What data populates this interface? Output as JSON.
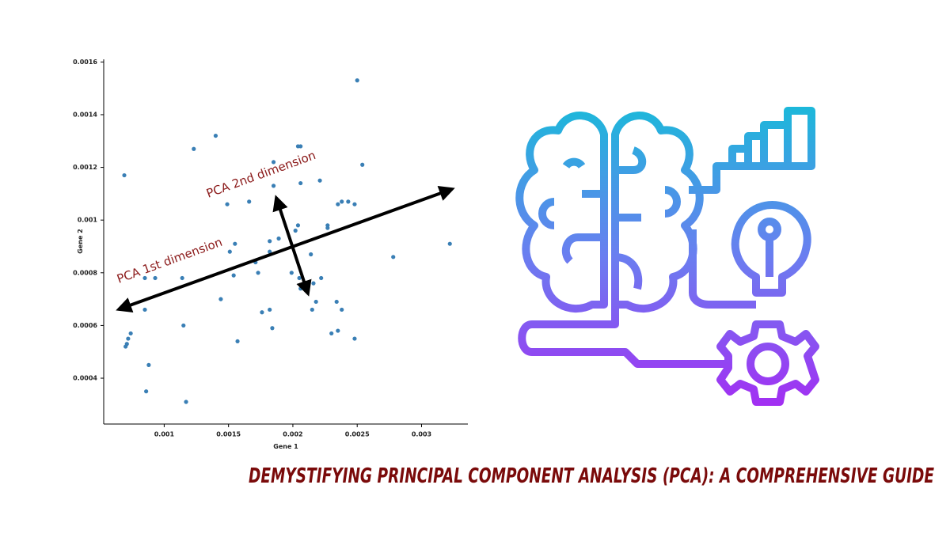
{
  "chart_data": {
    "type": "scatter",
    "title": "DEMYSTIFYING PRINCIPAL COMPONENT ANALYSIS (PCA): A COMPREHENSIVE GUIDE",
    "xlabel": "Gene 1",
    "ylabel": "Gene 2",
    "annotations": [
      "PCA 1st dimension",
      "PCA 2nd dimension"
    ],
    "color": "#3a7fb5",
    "xlim": [
      0.00053,
      0.00336
    ],
    "ylim": [
      0.000226,
      0.00161
    ],
    "xticks": [
      0.001,
      0.0015,
      0.002,
      0.0025,
      0.003
    ],
    "yticks": [
      0.0004,
      0.0006,
      0.0008,
      0.001,
      0.0012,
      0.0014,
      0.0016
    ],
    "x": [
      0.0025,
      0.00069,
      0.00123,
      0.0014,
      0.00185,
      0.00206,
      0.00204,
      0.00254,
      0.00149,
      0.00166,
      0.00185,
      0.00206,
      0.00221,
      0.00238,
      0.00243,
      0.00248,
      0.00235,
      0.00227,
      0.00227,
      0.00204,
      0.00202,
      0.00155,
      0.00151,
      0.00182,
      0.00189,
      0.00171,
      0.00173,
      0.00182,
      0.00154,
      0.00214,
      0.00199,
      0.00205,
      0.00222,
      0.00216,
      0.00218,
      0.00215,
      0.00206,
      0.00234,
      0.00238,
      0.00278,
      0.00322,
      0.00085,
      0.00093,
      0.00114,
      0.00085,
      0.00144,
      0.00176,
      0.00182,
      0.00184,
      0.00074,
      0.00072,
      0.00071,
      0.0007,
      0.00088,
      0.00086,
      0.00117,
      0.00157,
      0.00115,
      0.0023,
      0.00235,
      0.00248
    ],
    "values": [
      0.00153,
      0.00117,
      0.00127,
      0.00132,
      0.00122,
      0.00128,
      0.00128,
      0.00121,
      0.00106,
      0.00107,
      0.00113,
      0.00114,
      0.00115,
      0.00107,
      0.00107,
      0.00106,
      0.00106,
      0.00098,
      0.00097,
      0.00098,
      0.00096,
      0.00091,
      0.00088,
      0.00092,
      0.00093,
      0.00084,
      0.0008,
      0.00088,
      0.00079,
      0.00087,
      0.0008,
      0.00078,
      0.00078,
      0.00076,
      0.00069,
      0.00066,
      0.00074,
      0.00069,
      0.00066,
      0.00086,
      0.00091,
      0.00078,
      0.00078,
      0.00078,
      0.00066,
      0.0007,
      0.00065,
      0.00066,
      0.00059,
      0.00057,
      0.00055,
      0.00053,
      0.00052,
      0.00045,
      0.00035,
      0.00031,
      0.00054,
      0.0006,
      0.00057,
      0.00058,
      0.00055
    ]
  }
}
